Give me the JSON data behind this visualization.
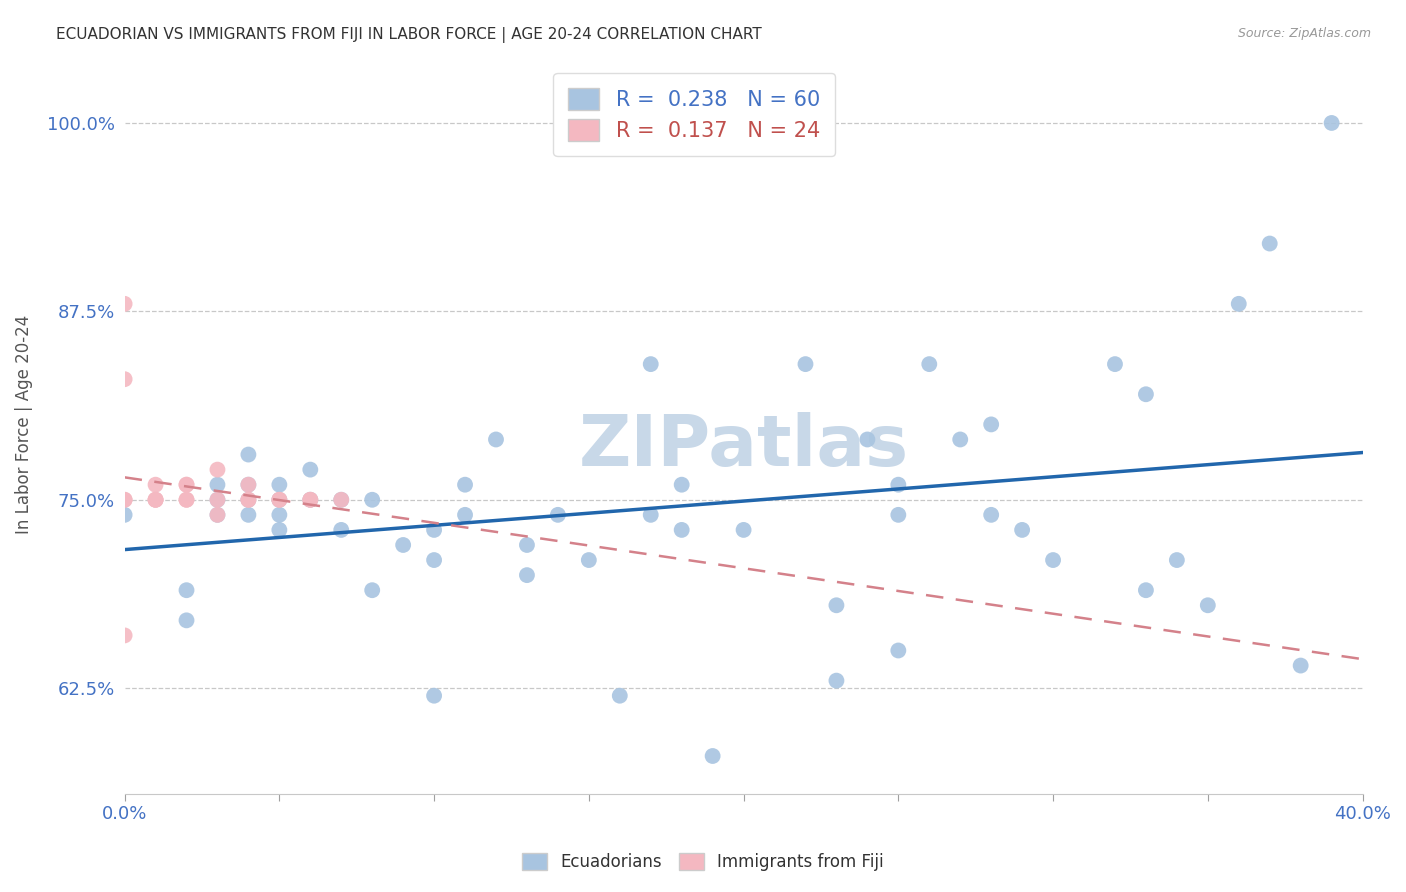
{
  "title": "ECUADORIAN VS IMMIGRANTS FROM FIJI IN LABOR FORCE | AGE 20-24 CORRELATION CHART",
  "source": "Source: ZipAtlas.com",
  "xlabel": "",
  "ylabel": "In Labor Force | Age 20-24",
  "xlim": [
    0.0,
    0.4
  ],
  "ylim": [
    0.555,
    1.045
  ],
  "yticks": [
    0.625,
    0.75,
    0.875,
    1.0
  ],
  "ytick_labels": [
    "62.5%",
    "75.0%",
    "87.5%",
    "100.0%"
  ],
  "xticks": [
    0.0,
    0.05,
    0.1,
    0.15,
    0.2,
    0.25,
    0.3,
    0.35,
    0.4
  ],
  "xtick_labels": [
    "0.0%",
    "",
    "",
    "",
    "",
    "",
    "",
    "",
    "40.0%"
  ],
  "ecuadorians_color": "#a8c4e0",
  "fiji_color": "#f4b8c1",
  "trend_ecuador_color": "#2166ac",
  "trend_fiji_color": "#d4818a",
  "watermark": "ZIPatlas",
  "watermark_color": "#c8d8e8",
  "R_ecuador": 0.238,
  "N_ecuador": 60,
  "R_fiji": 0.137,
  "N_fiji": 24,
  "ecuador_x": [
    0.0,
    0.02,
    0.02,
    0.03,
    0.03,
    0.03,
    0.04,
    0.04,
    0.04,
    0.04,
    0.05,
    0.05,
    0.05,
    0.05,
    0.06,
    0.06,
    0.07,
    0.07,
    0.08,
    0.08,
    0.09,
    0.1,
    0.1,
    0.1,
    0.11,
    0.11,
    0.12,
    0.13,
    0.13,
    0.14,
    0.15,
    0.16,
    0.17,
    0.17,
    0.18,
    0.18,
    0.19,
    0.2,
    0.22,
    0.23,
    0.23,
    0.24,
    0.25,
    0.25,
    0.25,
    0.26,
    0.27,
    0.28,
    0.28,
    0.29,
    0.3,
    0.32,
    0.33,
    0.33,
    0.34,
    0.35,
    0.36,
    0.37,
    0.38,
    0.39
  ],
  "ecuador_y": [
    0.74,
    0.67,
    0.69,
    0.74,
    0.75,
    0.76,
    0.74,
    0.75,
    0.76,
    0.78,
    0.73,
    0.74,
    0.75,
    0.76,
    0.75,
    0.77,
    0.73,
    0.75,
    0.69,
    0.75,
    0.72,
    0.71,
    0.73,
    0.62,
    0.74,
    0.76,
    0.79,
    0.7,
    0.72,
    0.74,
    0.71,
    0.62,
    0.74,
    0.84,
    0.73,
    0.76,
    0.58,
    0.73,
    0.84,
    0.68,
    0.63,
    0.79,
    0.65,
    0.74,
    0.76,
    0.84,
    0.79,
    0.74,
    0.8,
    0.73,
    0.71,
    0.84,
    0.69,
    0.82,
    0.71,
    0.68,
    0.88,
    0.92,
    0.64,
    1.0
  ],
  "fiji_x": [
    0.0,
    0.0,
    0.0,
    0.0,
    0.0,
    0.01,
    0.01,
    0.01,
    0.01,
    0.02,
    0.02,
    0.02,
    0.02,
    0.03,
    0.03,
    0.03,
    0.04,
    0.04,
    0.04,
    0.05,
    0.05,
    0.06,
    0.06,
    0.07
  ],
  "fiji_y": [
    0.88,
    0.83,
    0.75,
    0.75,
    0.66,
    0.75,
    0.75,
    0.76,
    0.75,
    0.75,
    0.75,
    0.76,
    0.76,
    0.74,
    0.75,
    0.77,
    0.75,
    0.76,
    0.75,
    0.75,
    0.75,
    0.75,
    0.75,
    0.75
  ]
}
